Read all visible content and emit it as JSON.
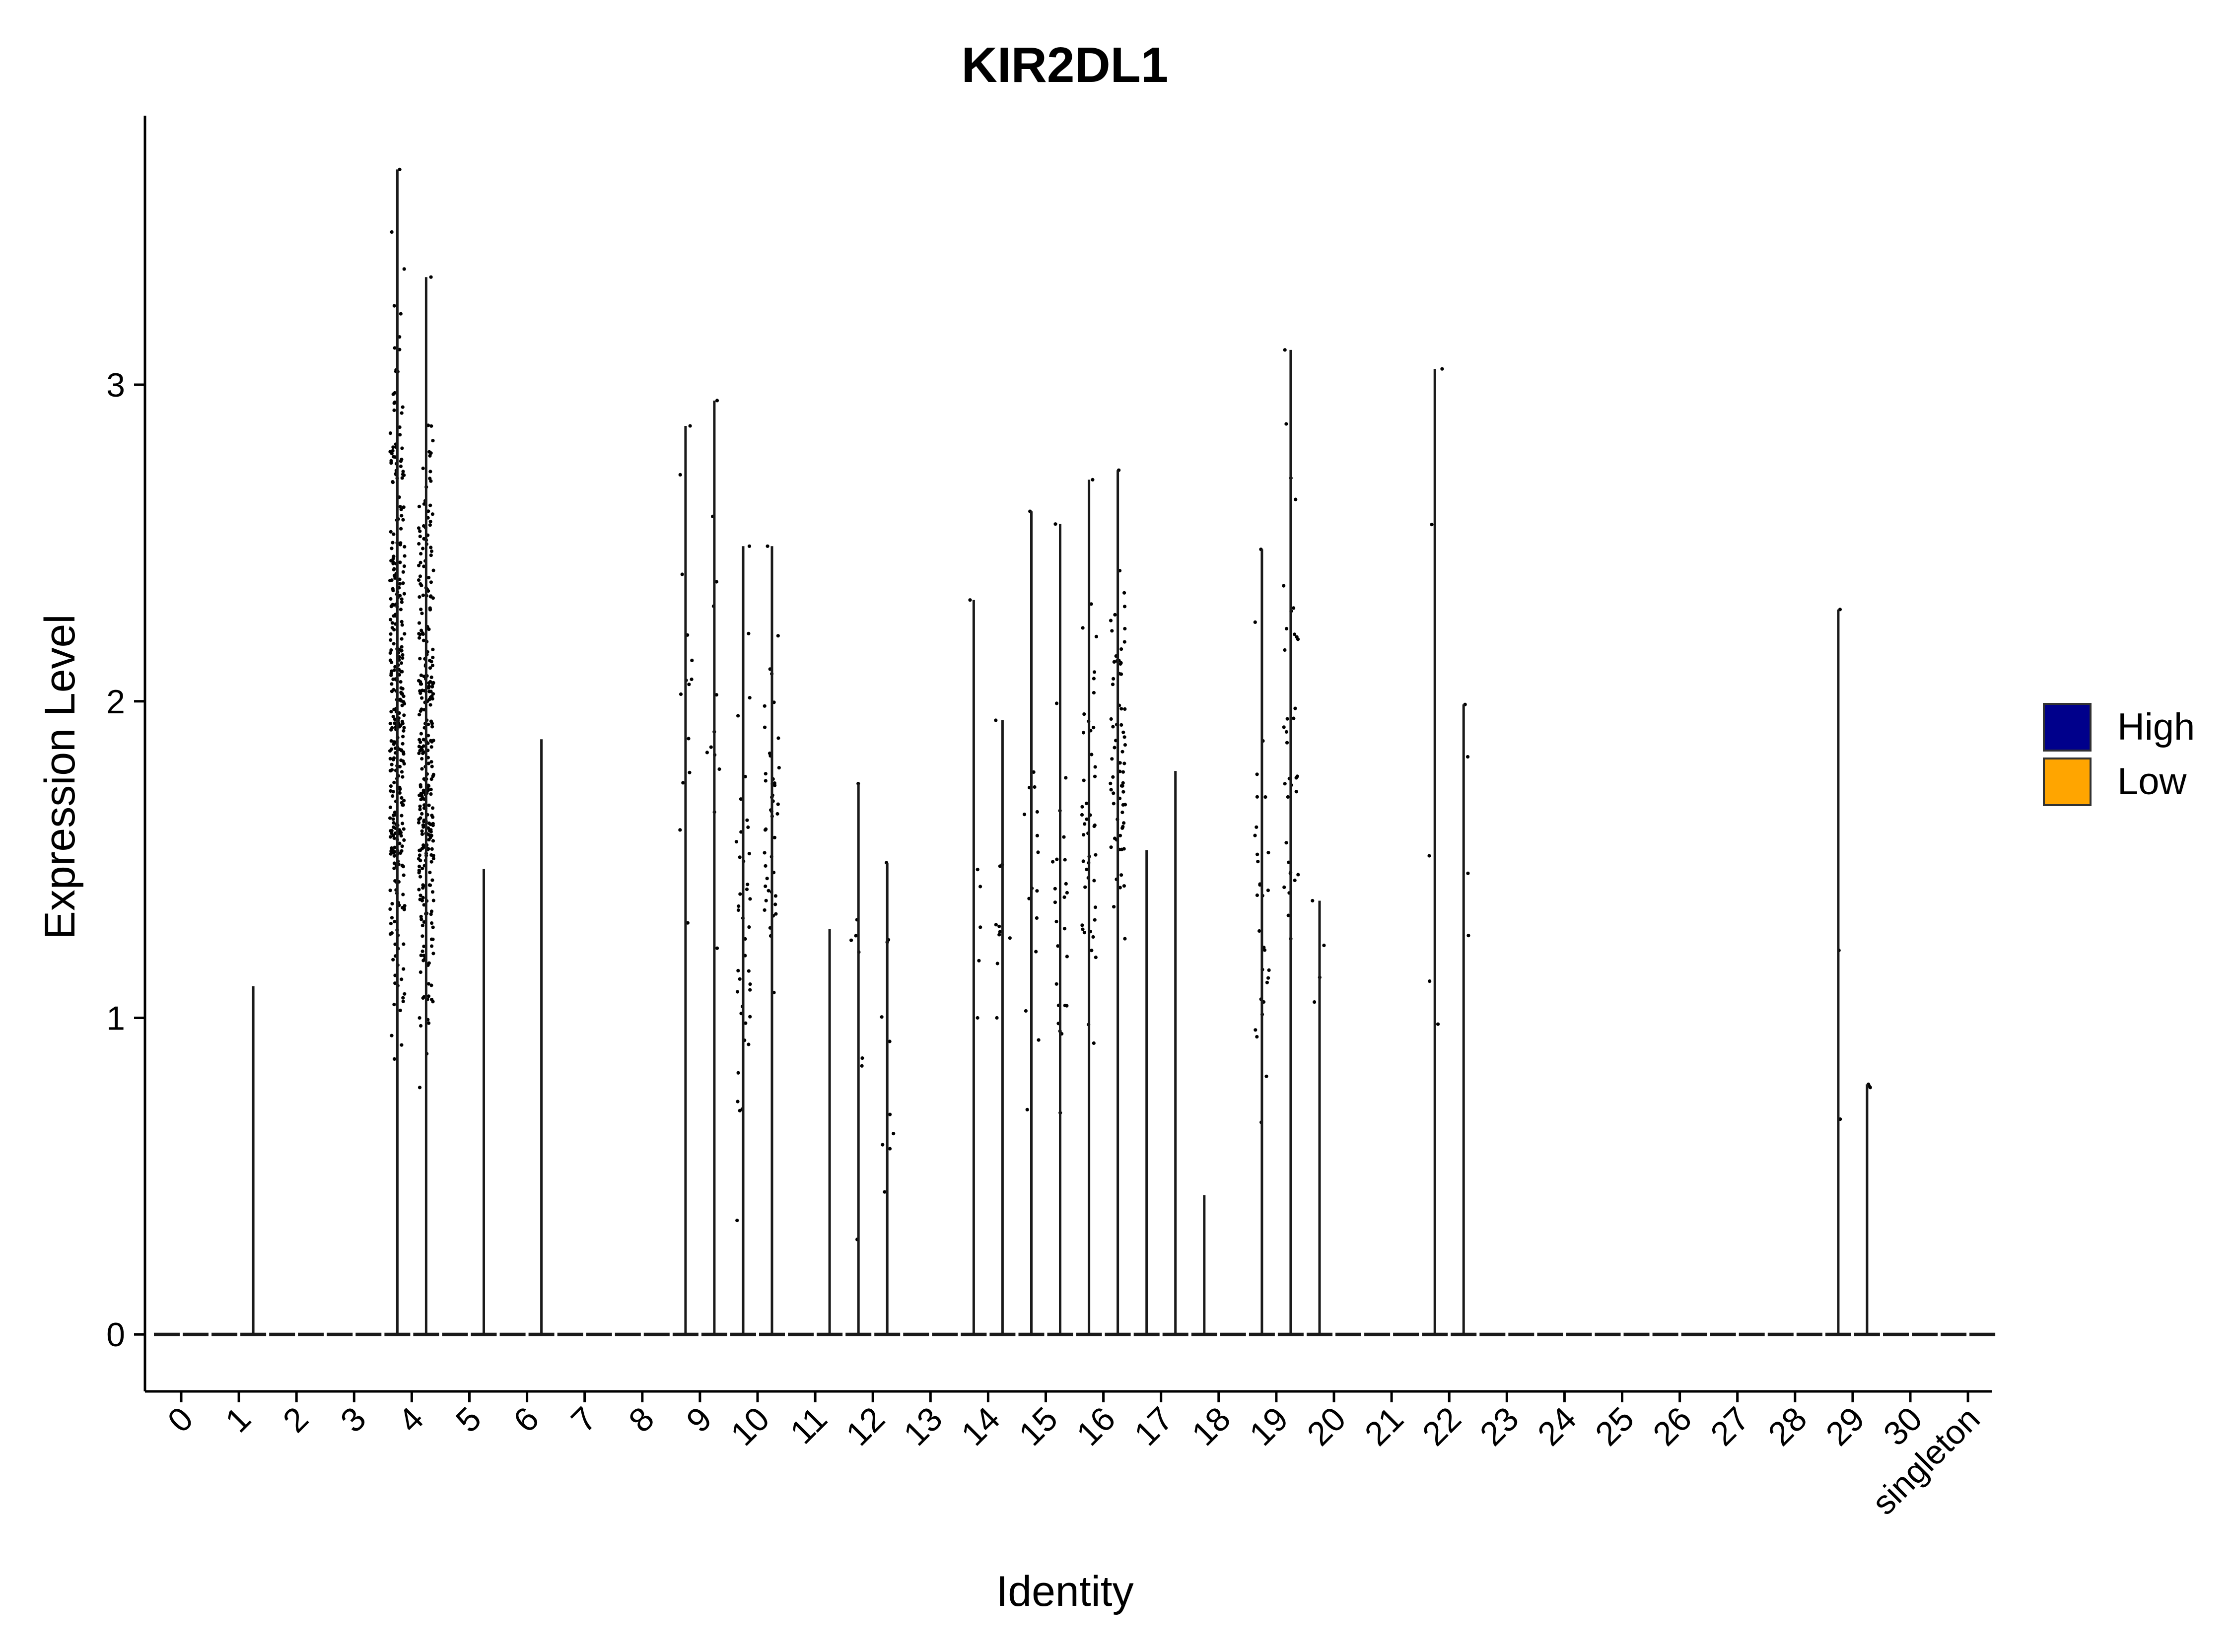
{
  "chart_data": {
    "type": "violin",
    "title": "KIR2DL1",
    "xlabel": "Identity",
    "ylabel": "Expression Level",
    "categories": [
      "0",
      "1",
      "2",
      "3",
      "4",
      "5",
      "6",
      "7",
      "8",
      "9",
      "10",
      "11",
      "12",
      "13",
      "14",
      "15",
      "16",
      "17",
      "18",
      "19",
      "20",
      "21",
      "22",
      "23",
      "24",
      "25",
      "26",
      "27",
      "28",
      "29",
      "30",
      "singleton"
    ],
    "yticks": [
      0,
      1,
      2,
      3
    ],
    "ylim": [
      -0.18,
      3.85
    ],
    "legend": {
      "title": "",
      "position": "right",
      "entries": [
        {
          "label": "High",
          "color": "#00008B"
        },
        {
          "label": "Low",
          "color": "#FFA500"
        }
      ]
    },
    "series": [
      {
        "name": "High",
        "max_values": [
          0,
          0,
          0,
          0,
          3.68,
          0,
          0,
          0,
          0,
          2.87,
          2.49,
          0,
          1.74,
          0,
          2.32,
          2.6,
          2.7,
          1.53,
          0.44,
          2.48,
          1.37,
          0,
          3.05,
          0,
          0,
          0,
          0,
          0,
          0,
          2.29,
          0,
          0
        ]
      },
      {
        "name": "Low",
        "max_values": [
          0,
          1.1,
          0,
          0,
          3.34,
          1.47,
          1.88,
          0,
          0,
          2.95,
          2.49,
          1.28,
          1.49,
          0,
          1.94,
          2.56,
          2.73,
          1.78,
          0,
          3.11,
          0,
          0,
          1.99,
          0,
          0,
          0,
          0,
          0,
          0,
          0.79,
          0,
          0
        ]
      }
    ],
    "point_clusters": [
      {
        "category": "4",
        "series": "High",
        "count": 340,
        "range": [
          0.87,
          3.68
        ]
      },
      {
        "category": "4",
        "series": "Low",
        "count": 300,
        "range": [
          0.78,
          3.34
        ]
      },
      {
        "category": "9",
        "series": "High",
        "count": 14,
        "range": [
          1.3,
          2.87
        ]
      },
      {
        "category": "9",
        "series": "Low",
        "count": 12,
        "range": [
          1.22,
          2.95
        ]
      },
      {
        "category": "10",
        "series": "High",
        "count": 40,
        "range": [
          0.36,
          2.49
        ]
      },
      {
        "category": "10",
        "series": "Low",
        "count": 45,
        "range": [
          1.08,
          2.49
        ]
      },
      {
        "category": "12",
        "series": "High",
        "count": 8,
        "range": [
          0.3,
          1.74
        ]
      },
      {
        "category": "12",
        "series": "Low",
        "count": 10,
        "range": [
          0.45,
          1.49
        ]
      },
      {
        "category": "14",
        "series": "High",
        "count": 6,
        "range": [
          1.0,
          2.32
        ]
      },
      {
        "category": "14",
        "series": "Low",
        "count": 10,
        "range": [
          1.0,
          1.94
        ]
      },
      {
        "category": "15",
        "series": "High",
        "count": 16,
        "range": [
          0.71,
          2.6
        ]
      },
      {
        "category": "15",
        "series": "Low",
        "count": 25,
        "range": [
          0.7,
          2.56
        ]
      },
      {
        "category": "16",
        "series": "High",
        "count": 45,
        "range": [
          0.92,
          2.7
        ]
      },
      {
        "category": "16",
        "series": "Low",
        "count": 70,
        "range": [
          1.25,
          2.73
        ]
      },
      {
        "category": "19",
        "series": "High",
        "count": 30,
        "range": [
          0.67,
          2.48
        ]
      },
      {
        "category": "19",
        "series": "Low",
        "count": 35,
        "range": [
          1.25,
          3.11
        ]
      },
      {
        "category": "20",
        "series": "High",
        "count": 4,
        "range": [
          1.05,
          1.37
        ]
      },
      {
        "category": "22",
        "series": "High",
        "count": 5,
        "range": [
          0.98,
          3.05
        ]
      },
      {
        "category": "22",
        "series": "Low",
        "count": 4,
        "range": [
          1.26,
          1.99
        ]
      },
      {
        "category": "29",
        "series": "High",
        "count": 3,
        "range": [
          0.68,
          2.29
        ]
      },
      {
        "category": "29",
        "series": "Low",
        "count": 3,
        "range": [
          0.78,
          0.79
        ]
      }
    ]
  }
}
